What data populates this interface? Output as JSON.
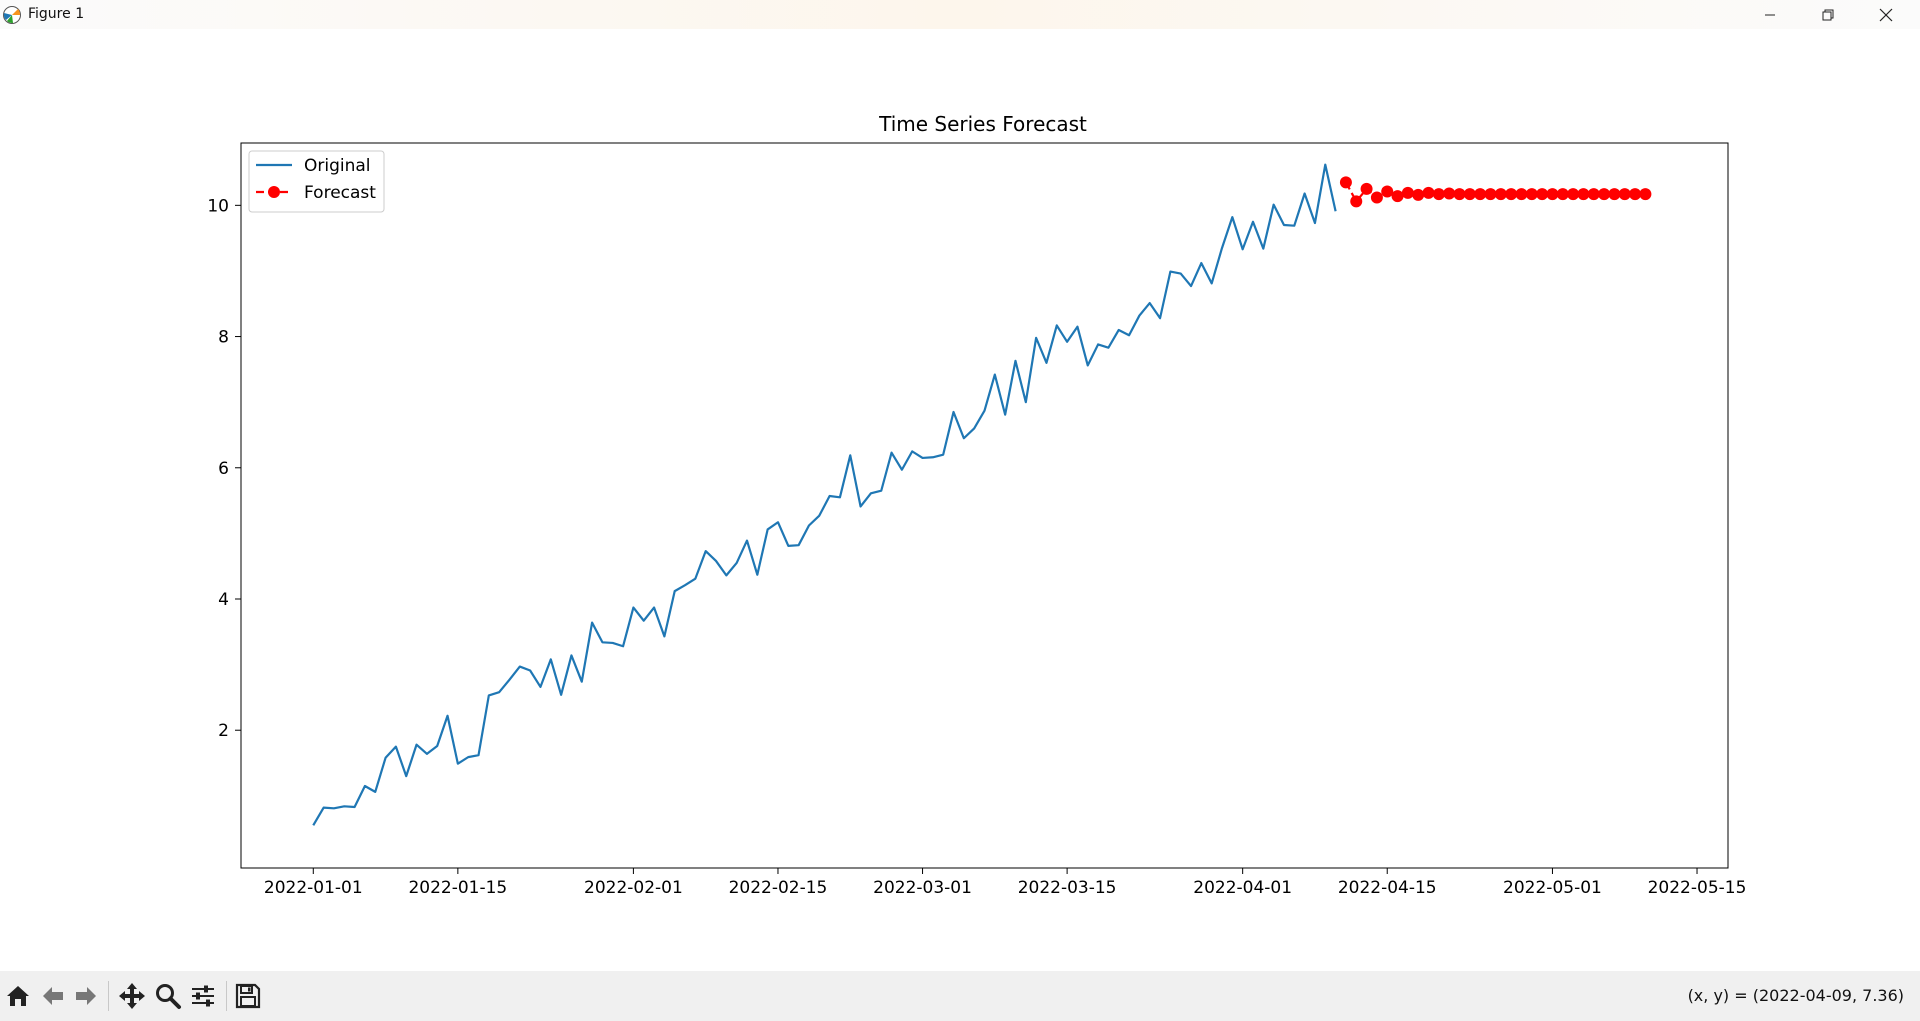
{
  "window": {
    "title": "Figure 1",
    "minimize_icon": "minimize-icon",
    "maximize_icon": "restore-icon",
    "close_icon": "close-icon"
  },
  "toolbar": {
    "buttons": [
      {
        "name": "home-button",
        "icon": "home-icon"
      },
      {
        "name": "back-button",
        "icon": "arrow-left-icon"
      },
      {
        "name": "forward-button",
        "icon": "arrow-right-icon"
      },
      {
        "name": "pan-button",
        "icon": "move-icon"
      },
      {
        "name": "zoom-button",
        "icon": "magnifier-icon"
      },
      {
        "name": "configure-subplots-button",
        "icon": "sliders-icon"
      },
      {
        "name": "save-button",
        "icon": "floppy-disk-icon"
      }
    ],
    "coords": "(x, y) = (2022-04-09, 7.36)"
  },
  "chart_data": {
    "type": "line",
    "title": "Time Series Forecast",
    "xlabel": "",
    "ylabel": "",
    "xlim": [
      "2021-12-25",
      "2022-05-18"
    ],
    "ylim": [
      -0.1,
      10.95
    ],
    "x_ticks": [
      "2022-01-01",
      "2022-01-15",
      "2022-02-01",
      "2022-02-15",
      "2022-03-01",
      "2022-03-15",
      "2022-04-01",
      "2022-04-15",
      "2022-05-01",
      "2022-05-15"
    ],
    "y_ticks": [
      2,
      4,
      6,
      8,
      10
    ],
    "grid": false,
    "legend": {
      "position": "top-left",
      "entries": [
        "Original",
        "Forecast"
      ]
    },
    "series": [
      {
        "name": "Original",
        "color": "#1f77b4",
        "style": "solid",
        "x_start": "2022-01-01",
        "x_step_days": 1,
        "values": [
          0.55,
          0.82,
          0.81,
          0.84,
          0.83,
          1.15,
          1.06,
          1.58,
          1.75,
          1.3,
          1.78,
          1.64,
          1.76,
          2.22,
          1.49,
          1.59,
          1.62,
          2.53,
          2.58,
          2.77,
          2.97,
          2.91,
          2.66,
          3.08,
          2.54,
          3.14,
          2.74,
          3.64,
          3.34,
          3.33,
          3.28,
          3.87,
          3.67,
          3.87,
          3.43,
          4.12,
          4.21,
          4.31,
          4.73,
          4.58,
          4.36,
          4.55,
          4.89,
          4.37,
          5.06,
          5.17,
          4.81,
          4.82,
          5.12,
          5.27,
          5.57,
          5.55,
          6.19,
          5.41,
          5.61,
          5.65,
          6.23,
          5.97,
          6.25,
          6.15,
          6.16,
          6.2,
          6.85,
          6.45,
          6.6,
          6.87,
          7.42,
          6.81,
          7.63,
          7.0,
          7.98,
          7.6,
          8.17,
          7.92,
          8.15,
          7.56,
          7.88,
          7.83,
          8.1,
          8.02,
          8.32,
          8.51,
          8.28,
          8.99,
          8.96,
          8.77,
          9.12,
          8.81,
          9.35,
          9.82,
          9.33,
          9.75,
          9.34,
          10.01,
          9.7,
          9.69,
          10.18,
          9.73,
          10.62,
          9.91
        ]
      },
      {
        "name": "Forecast",
        "color": "#ff0000",
        "style": "dashed",
        "marker": "circle",
        "x_start": "2022-04-11",
        "x_step_days": 1,
        "values": [
          10.35,
          10.06,
          10.25,
          10.12,
          10.21,
          10.14,
          10.19,
          10.16,
          10.19,
          10.17,
          10.18,
          10.17,
          10.17,
          10.17,
          10.17,
          10.17,
          10.17,
          10.17,
          10.17,
          10.17,
          10.17,
          10.17,
          10.17,
          10.17,
          10.17,
          10.17,
          10.17,
          10.17,
          10.17,
          10.17
        ]
      }
    ]
  }
}
